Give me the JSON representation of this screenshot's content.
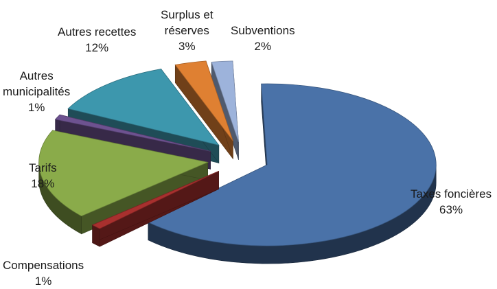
{
  "chart_data": {
    "type": "pie",
    "style": "3d-exploded",
    "title": "",
    "legend": "none",
    "slices": [
      {
        "label": "Taxes foncières",
        "percent_label": "63%",
        "value": 63,
        "color": "#4a72a8"
      },
      {
        "label": "Compensations",
        "percent_label": "1%",
        "value": 1,
        "color": "#a8302e"
      },
      {
        "label": "Tarifs",
        "percent_label": "18%",
        "value": 18,
        "color": "#8aab4a"
      },
      {
        "label": "Autres municipalités",
        "label_lines": [
          "Autres",
          "municipalités"
        ],
        "percent_label": "1%",
        "value": 1,
        "color": "#6d5290"
      },
      {
        "label": "Autres recettes",
        "percent_label": "12%",
        "value": 12,
        "color": "#3d97ad"
      },
      {
        "label": "Surplus et réserves",
        "label_lines": [
          "Surplus et",
          "réserves"
        ],
        "percent_label": "3%",
        "value": 3,
        "color": "#df8032"
      },
      {
        "label": "Subventions",
        "percent_label": "2%",
        "value": 2,
        "color": "#9db3db"
      }
    ]
  }
}
